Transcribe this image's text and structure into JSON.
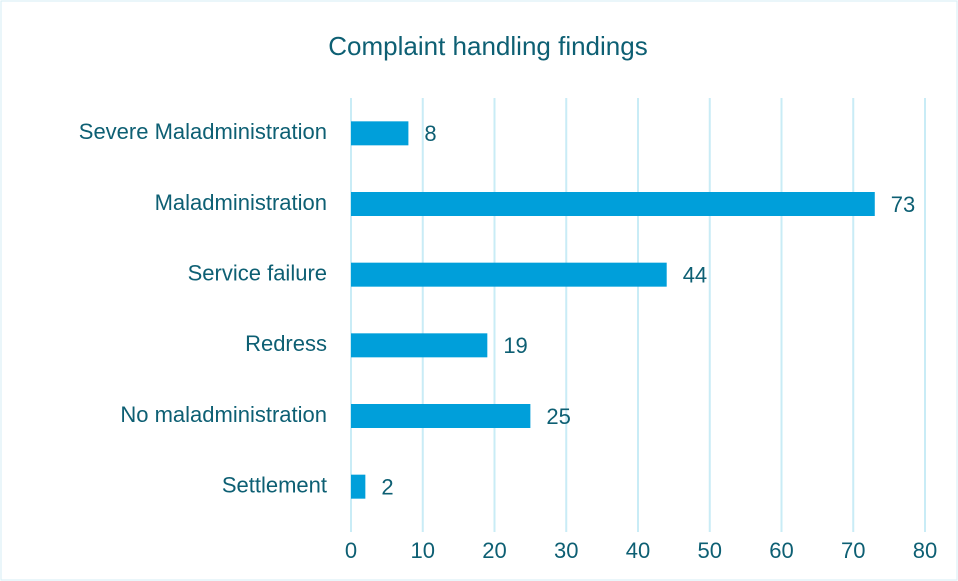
{
  "chart_data": {
    "type": "bar",
    "orientation": "horizontal",
    "title": "Complaint handling findings",
    "categories": [
      "Severe Maladministration",
      "Maladministration",
      "Service failure",
      "Redress",
      "No maladministration",
      "Settlement"
    ],
    "values": [
      8,
      73,
      44,
      19,
      25,
      2
    ],
    "color": "#009fda",
    "xlim": [
      0,
      80
    ],
    "xticks": [
      0,
      10,
      20,
      30,
      40,
      50,
      60,
      70,
      80
    ],
    "grid": true
  }
}
